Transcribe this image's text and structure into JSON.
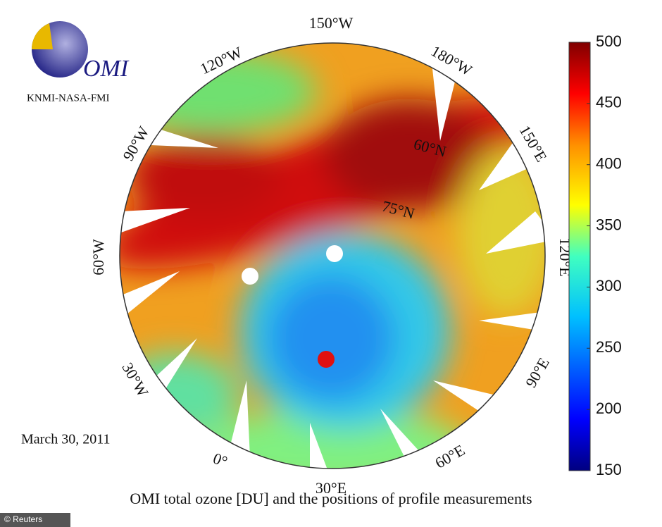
{
  "logo": {
    "name": "OMI",
    "subtitle": "KNMI-NASA-FMI"
  },
  "date": "March 30, 2011",
  "map": {
    "longitude_labels": [
      "150°W",
      "120°W",
      "180°W",
      "90°W",
      "150°E",
      "60°W",
      "120°E",
      "30°W",
      "90°E",
      "0°",
      "60°E",
      "30°E"
    ],
    "latitude_labels": [
      "60°N",
      "75°N"
    ]
  },
  "colorbar": {
    "lim": [
      150,
      500
    ],
    "ticks": [
      150,
      200,
      250,
      300,
      350,
      400,
      450,
      500
    ]
  },
  "caption": "OMI total ozone [DU] and the positions of profile measurements",
  "credit": "© Reuters"
}
